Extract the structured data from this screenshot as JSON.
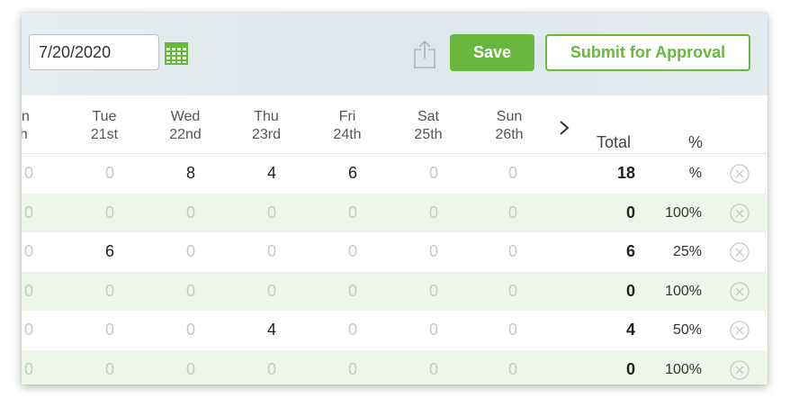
{
  "toolbar": {
    "date_value": "7/20/2020",
    "save_label": "Save",
    "submit_label": "Submit for Approval",
    "accent_color": "#6ab73e",
    "icons": [
      "calendar-icon",
      "share-icon"
    ]
  },
  "table": {
    "days": [
      {
        "day": "on",
        "date": "th"
      },
      {
        "day": "Tue",
        "date": "21st"
      },
      {
        "day": "Wed",
        "date": "22nd"
      },
      {
        "day": "Thu",
        "date": "23rd"
      },
      {
        "day": "Fri",
        "date": "24th"
      },
      {
        "day": "Sat",
        "date": "25th"
      },
      {
        "day": "Sun",
        "date": "26th"
      }
    ],
    "total_header": "Total",
    "percent_header": "%",
    "rows": [
      {
        "cells": [
          "0",
          "0",
          "8",
          "4",
          "6",
          "0",
          "0"
        ],
        "total": "18",
        "percent": "%"
      },
      {
        "cells": [
          "0",
          "0",
          "0",
          "0",
          "0",
          "0",
          "0"
        ],
        "total": "0",
        "percent": "100%"
      },
      {
        "cells": [
          "0",
          "6",
          "0",
          "0",
          "0",
          "0",
          "0"
        ],
        "total": "6",
        "percent": "25%"
      },
      {
        "cells": [
          "0",
          "0",
          "0",
          "0",
          "0",
          "0",
          "0"
        ],
        "total": "0",
        "percent": "100%"
      },
      {
        "cells": [
          "0",
          "0",
          "0",
          "4",
          "0",
          "0",
          "0"
        ],
        "total": "4",
        "percent": "50%"
      },
      {
        "cells": [
          "0",
          "0",
          "0",
          "0",
          "0",
          "0",
          "0"
        ],
        "total": "0",
        "percent": "100%"
      }
    ]
  }
}
